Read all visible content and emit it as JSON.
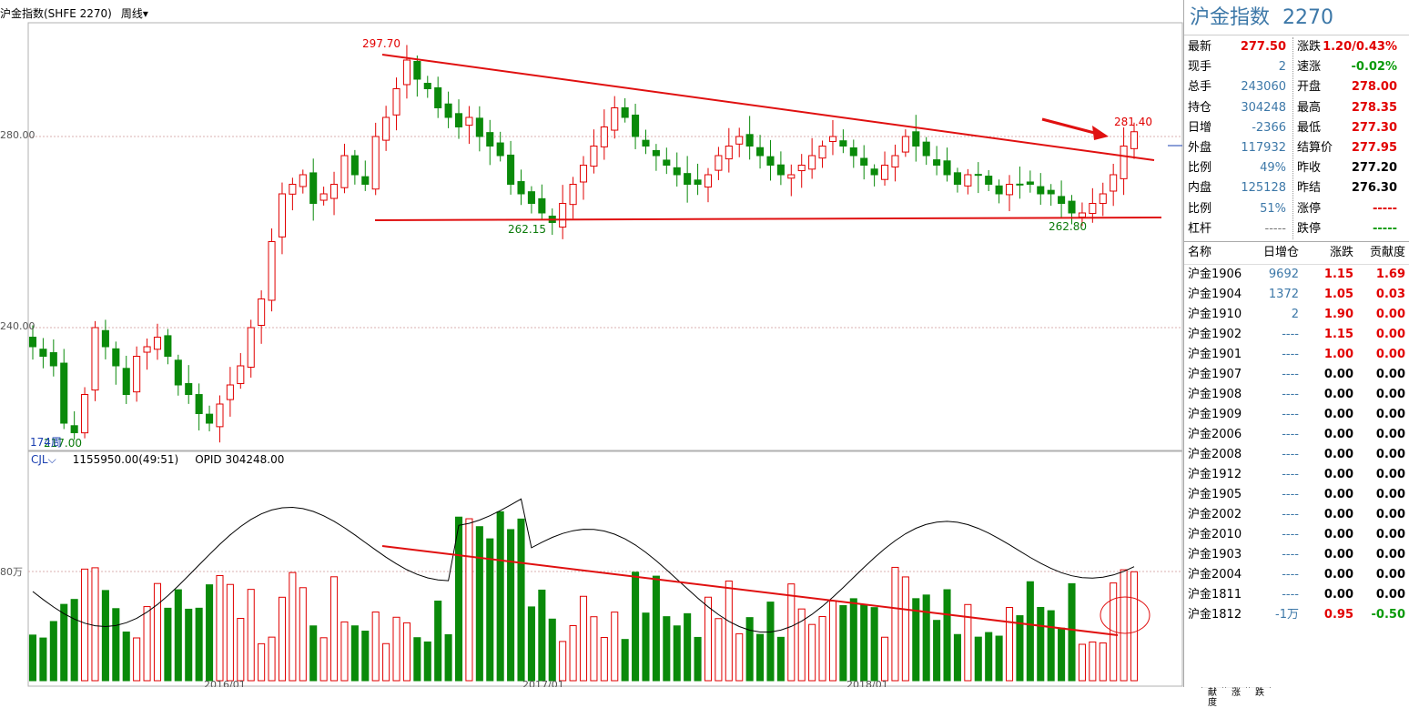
{
  "header": {
    "title": "沪金指数(SHFE 2270)",
    "period": "周线"
  },
  "main_chart": {
    "y_labels": [
      {
        "text": "280.00",
        "value": 280
      },
      {
        "text": "240.00",
        "value": 240
      }
    ],
    "price_labels": [
      {
        "text": "297.70",
        "color": "#e10000"
      },
      {
        "text": "281.40",
        "color": "#e10000"
      },
      {
        "text": "262.15",
        "color": "#0a7a0a"
      },
      {
        "text": "262.80",
        "color": "#0a7a0a"
      },
      {
        "text": "217.00",
        "color": "#0a7a0a"
      }
    ],
    "corner_label": "174周"
  },
  "volume_chart": {
    "indicator": "CJL",
    "value": "1155950.00(49:51)",
    "opid": "OPID 304248.00",
    "y_label": "80万"
  },
  "bottom_tabs": [
    "贡献度",
    "领涨",
    "领跌"
  ],
  "chart_data": {
    "type": "candlestick",
    "x_label_text": [
      "2016/01",
      "2017/01",
      "2018/01"
    ],
    "trendlines": [
      "upper descending resistance from 297.70",
      "lower support near 262",
      "volume descending line"
    ],
    "ohlc_weekly_close_estimates": [
      236,
      234,
      232,
      220,
      218,
      226,
      240,
      236,
      232,
      226,
      234,
      236,
      238,
      234,
      228,
      226,
      222,
      220,
      224,
      228,
      232,
      240,
      246,
      258,
      268,
      270,
      272,
      266,
      268,
      270,
      276,
      272,
      270,
      280,
      284,
      290,
      296,
      292,
      290,
      286,
      284,
      282,
      284,
      280,
      278,
      276,
      270,
      268,
      266,
      264,
      262,
      266,
      270,
      274,
      278,
      282,
      286,
      284,
      280,
      278,
      276,
      274,
      272,
      270,
      270,
      272,
      276,
      278,
      280,
      278,
      276,
      274,
      272,
      272,
      274,
      276,
      278,
      280,
      278,
      276,
      274,
      272,
      274,
      276,
      280,
      278,
      276,
      274,
      272,
      270,
      272,
      272,
      270,
      268,
      270,
      270,
      270,
      268,
      268,
      266,
      264,
      264,
      266,
      268,
      272,
      278,
      281
    ]
  },
  "quote": {
    "title": "沪金指数",
    "code": "2270",
    "left": [
      {
        "label": "最新",
        "value": "277.50",
        "color": "red"
      },
      {
        "label": "现手",
        "value": "2",
        "color": "blue"
      },
      {
        "label": "总手",
        "value": "243060",
        "color": "blue"
      },
      {
        "label": "持仓",
        "value": "304248",
        "color": "blue"
      },
      {
        "label": "日增",
        "value": "-2366",
        "color": "blue"
      },
      {
        "label": "外盘",
        "value": "117932",
        "color": "blue"
      },
      {
        "label": "比例",
        "value": "49%",
        "color": "blue"
      },
      {
        "label": "内盘",
        "value": "125128",
        "color": "blue"
      },
      {
        "label": "比例",
        "value": "51%",
        "color": "blue"
      },
      {
        "label": "杠杆",
        "value": "-----",
        "color": "gray"
      }
    ],
    "right": [
      {
        "label": "涨跌",
        "value": "1.20/0.43%",
        "color": "red"
      },
      {
        "label": "速涨",
        "value": "-0.02%",
        "color": "green"
      },
      {
        "label": "开盘",
        "value": "278.00",
        "color": "red"
      },
      {
        "label": "最高",
        "value": "278.35",
        "color": "red"
      },
      {
        "label": "最低",
        "value": "277.30",
        "color": "red"
      },
      {
        "label": "结算价",
        "value": "277.95",
        "color": "red"
      },
      {
        "label": "昨收",
        "value": "277.20",
        "color": "dk"
      },
      {
        "label": "昨结",
        "value": "276.30",
        "color": "dk"
      },
      {
        "label": "涨停",
        "value": "-----",
        "color": "red"
      },
      {
        "label": "跌停",
        "value": "-----",
        "color": "green"
      }
    ]
  },
  "contracts": {
    "headers": [
      "名称",
      "日增仓",
      "涨跌",
      "贡献度"
    ],
    "rows": [
      {
        "name": "沪金1906",
        "inc": "9692",
        "chg": "1.15",
        "contrib": "1.69",
        "chg_color": "red",
        "contrib_color": "red"
      },
      {
        "name": "沪金1904",
        "inc": "1372",
        "chg": "1.05",
        "contrib": "0.03",
        "chg_color": "red",
        "contrib_color": "red"
      },
      {
        "name": "沪金1910",
        "inc": "2",
        "chg": "1.90",
        "contrib": "0.00",
        "chg_color": "red",
        "contrib_color": "red"
      },
      {
        "name": "沪金1902",
        "inc": "----",
        "chg": "1.15",
        "contrib": "0.00",
        "chg_color": "red",
        "contrib_color": "red"
      },
      {
        "name": "沪金1901",
        "inc": "----",
        "chg": "1.00",
        "contrib": "0.00",
        "chg_color": "red",
        "contrib_color": "red"
      },
      {
        "name": "沪金1907",
        "inc": "----",
        "chg": "0.00",
        "contrib": "0.00",
        "chg_color": "dk",
        "contrib_color": "dk"
      },
      {
        "name": "沪金1908",
        "inc": "----",
        "chg": "0.00",
        "contrib": "0.00",
        "chg_color": "dk",
        "contrib_color": "dk"
      },
      {
        "name": "沪金1909",
        "inc": "----",
        "chg": "0.00",
        "contrib": "0.00",
        "chg_color": "dk",
        "contrib_color": "dk"
      },
      {
        "name": "沪金2006",
        "inc": "----",
        "chg": "0.00",
        "contrib": "0.00",
        "chg_color": "dk",
        "contrib_color": "dk"
      },
      {
        "name": "沪金2008",
        "inc": "----",
        "chg": "0.00",
        "contrib": "0.00",
        "chg_color": "dk",
        "contrib_color": "dk"
      },
      {
        "name": "沪金1912",
        "inc": "----",
        "chg": "0.00",
        "contrib": "0.00",
        "chg_color": "dk",
        "contrib_color": "dk"
      },
      {
        "name": "沪金1905",
        "inc": "----",
        "chg": "0.00",
        "contrib": "0.00",
        "chg_color": "dk",
        "contrib_color": "dk"
      },
      {
        "name": "沪金2002",
        "inc": "----",
        "chg": "0.00",
        "contrib": "0.00",
        "chg_color": "dk",
        "contrib_color": "dk"
      },
      {
        "name": "沪金2010",
        "inc": "----",
        "chg": "0.00",
        "contrib": "0.00",
        "chg_color": "dk",
        "contrib_color": "dk"
      },
      {
        "name": "沪金1903",
        "inc": "----",
        "chg": "0.00",
        "contrib": "0.00",
        "chg_color": "dk",
        "contrib_color": "dk"
      },
      {
        "name": "沪金2004",
        "inc": "----",
        "chg": "0.00",
        "contrib": "0.00",
        "chg_color": "dk",
        "contrib_color": "dk"
      },
      {
        "name": "沪金1811",
        "inc": "----",
        "chg": "0.00",
        "contrib": "0.00",
        "chg_color": "dk",
        "contrib_color": "dk"
      },
      {
        "name": "沪金1812",
        "inc": "-1万",
        "chg": "0.95",
        "contrib": "-0.50",
        "chg_color": "red",
        "contrib_color": "green"
      }
    ]
  }
}
